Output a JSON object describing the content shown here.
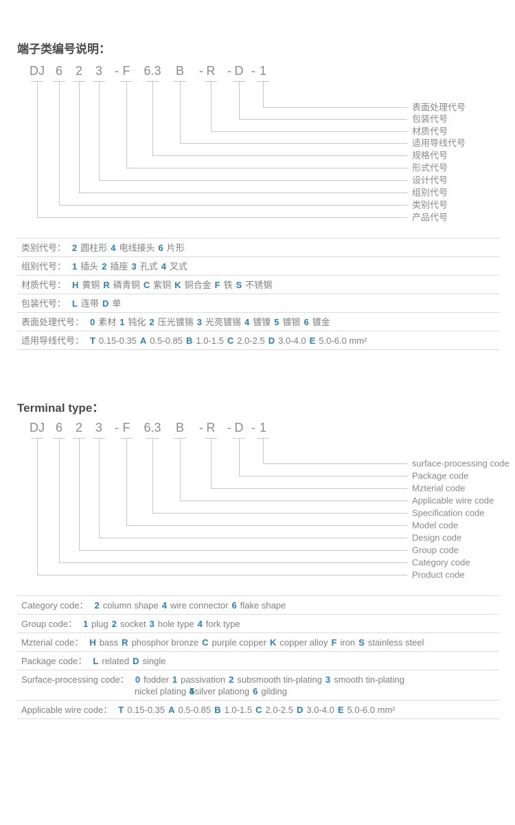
{
  "colors": {
    "accent": "#1f83c9",
    "body_text": "#808080",
    "title_text": "#4a4a4a",
    "connector_line": "#c6c6c6",
    "table_separator": "#dcdcdc",
    "code_text": "#8c8c8c"
  },
  "sections": [
    {
      "id": "cn",
      "title": "端子类编号说明：",
      "code_parts": [
        {
          "prefix": "",
          "text": "DJ"
        },
        {
          "prefix": "",
          "text": "6"
        },
        {
          "prefix": "",
          "text": "2"
        },
        {
          "prefix": "",
          "text": "3"
        },
        {
          "prefix": "-",
          "text": "F"
        },
        {
          "prefix": "",
          "text": "6.3"
        },
        {
          "prefix": "",
          "text": "B"
        },
        {
          "prefix": "-",
          "text": "R"
        },
        {
          "prefix": "-",
          "text": "D"
        },
        {
          "prefix": "-",
          "text": "1"
        }
      ],
      "labels": [
        "表面处理代号",
        "包装代号",
        "材质代号",
        "适用导线代号",
        "规格代号",
        "形式代号",
        "设计代号",
        "组别代号",
        "类别代号",
        "产品代号"
      ],
      "table": [
        {
          "label": "类别代号：",
          "lines": [
            [
              {
                "c": "2"
              },
              {
                "t": "圆柱形"
              },
              {
                "c": "4"
              },
              {
                "t": "电线接头"
              },
              {
                "c": "6"
              },
              {
                "t": "片形"
              }
            ]
          ]
        },
        {
          "label": "组别代号：",
          "lines": [
            [
              {
                "c": "1"
              },
              {
                "t": "插头"
              },
              {
                "c": "2"
              },
              {
                "t": "插座"
              },
              {
                "c": "3"
              },
              {
                "t": "孔式"
              },
              {
                "c": "4"
              },
              {
                "t": "叉式"
              }
            ]
          ]
        },
        {
          "label": "材质代号：",
          "lines": [
            [
              {
                "c": "H"
              },
              {
                "t": "黄铜"
              },
              {
                "c": "R"
              },
              {
                "t": "磷青铜"
              },
              {
                "c": "C"
              },
              {
                "t": "紫铜"
              },
              {
                "c": "K"
              },
              {
                "t": "铜合金"
              },
              {
                "c": "F"
              },
              {
                "t": "铁"
              },
              {
                "c": "S"
              },
              {
                "t": "不锈钢"
              }
            ]
          ]
        },
        {
          "label": "包装代号：",
          "lines": [
            [
              {
                "c": "L"
              },
              {
                "t": "连带"
              },
              {
                "c": "D"
              },
              {
                "t": "单"
              }
            ]
          ]
        },
        {
          "label": "表面处理代号：",
          "lines": [
            [
              {
                "c": "0"
              },
              {
                "t": "素材"
              },
              {
                "c": "1"
              },
              {
                "t": "钝化"
              },
              {
                "c": "2"
              },
              {
                "t": "压光镀锡"
              },
              {
                "c": "3"
              },
              {
                "t": "光亮镀锡"
              },
              {
                "c": "4"
              },
              {
                "t": "镀镍"
              },
              {
                "c": "5"
              },
              {
                "t": "镀银"
              },
              {
                "c": "6"
              },
              {
                "t": "镀金"
              }
            ]
          ]
        },
        {
          "label": "适用导线代号：",
          "lines": [
            [
              {
                "c": "T"
              },
              {
                "t": "0.15-0.35"
              },
              {
                "c": "A"
              },
              {
                "t": "0.5-0.85"
              },
              {
                "c": "B"
              },
              {
                "t": "1.0-1.5"
              },
              {
                "c": "C"
              },
              {
                "t": "2.0-2.5"
              },
              {
                "c": "D"
              },
              {
                "t": "3.0-4.0"
              },
              {
                "c": "E"
              },
              {
                "t": "5.0-6.0 mm²"
              }
            ]
          ]
        }
      ]
    },
    {
      "id": "en",
      "title": "Terminal type：",
      "code_parts": [
        {
          "prefix": "",
          "text": "DJ"
        },
        {
          "prefix": "",
          "text": "6"
        },
        {
          "prefix": "",
          "text": "2"
        },
        {
          "prefix": "",
          "text": "3"
        },
        {
          "prefix": "-",
          "text": "F"
        },
        {
          "prefix": "",
          "text": "6.3"
        },
        {
          "prefix": "",
          "text": "B"
        },
        {
          "prefix": "-",
          "text": "R"
        },
        {
          "prefix": "-",
          "text": "D"
        },
        {
          "prefix": "-",
          "text": "1"
        }
      ],
      "labels": [
        "surface-processing code",
        "Package code",
        "Mzterial code",
        "Applicable wire code",
        "Specification code",
        "Model code",
        "Design code",
        "Group code",
        "Category code",
        "Product code"
      ],
      "table": [
        {
          "label": "Category code：",
          "lines": [
            [
              {
                "c": "2"
              },
              {
                "t": "column shape"
              },
              {
                "c": "4"
              },
              {
                "t": "wire connector"
              },
              {
                "c": "6"
              },
              {
                "t": "flake shape"
              }
            ]
          ]
        },
        {
          "label": "Group code：",
          "lines": [
            [
              {
                "c": "1"
              },
              {
                "t": "plug"
              },
              {
                "c": "2"
              },
              {
                "t": "socket"
              },
              {
                "c": "3"
              },
              {
                "t": "hole type"
              },
              {
                "c": "4"
              },
              {
                "t": "fork type"
              }
            ]
          ]
        },
        {
          "label": "Mzterial code：",
          "lines": [
            [
              {
                "c": "H"
              },
              {
                "t": "bass"
              },
              {
                "c": "R"
              },
              {
                "t": "phosphor bronze"
              },
              {
                "c": "C"
              },
              {
                "t": "purple copper"
              },
              {
                "c": "K"
              },
              {
                "t": "copper alloy"
              },
              {
                "c": "F"
              },
              {
                "t": "iron"
              },
              {
                "c": "S"
              },
              {
                "t": "stainless steel"
              }
            ]
          ]
        },
        {
          "label": "Package code：",
          "lines": [
            [
              {
                "c": "L"
              },
              {
                "t": "related"
              },
              {
                "c": "D"
              },
              {
                "t": "single"
              }
            ]
          ]
        },
        {
          "label": "Surface-processing code：",
          "lines": [
            [
              {
                "c": "0"
              },
              {
                "t": "fodder"
              },
              {
                "c": "1"
              },
              {
                "t": "passivation"
              },
              {
                "c": "2"
              },
              {
                "t": "subsmooth tin-plating"
              },
              {
                "c": "3"
              },
              {
                "t": "smooth tin-plating"
              }
            ],
            [
              {
                "t": "nickel plating"
              },
              {
                "c": "54",
                "overlap": true
              },
              {
                "t": "silver plationg"
              },
              {
                "c": "6"
              },
              {
                "t": "gilding"
              }
            ]
          ]
        },
        {
          "label": "Applicable wire code：",
          "lines": [
            [
              {
                "c": "T"
              },
              {
                "t": "0.15-0.35"
              },
              {
                "c": "A"
              },
              {
                "t": "0.5-0.85"
              },
              {
                "c": "B"
              },
              {
                "t": "1.0-1.5"
              },
              {
                "c": "C"
              },
              {
                "t": "2.0-2.5"
              },
              {
                "c": "D"
              },
              {
                "t": "3.0-4.0"
              },
              {
                "c": "E"
              },
              {
                "t": "5.0-6.0 mm²"
              }
            ]
          ]
        }
      ]
    }
  ]
}
